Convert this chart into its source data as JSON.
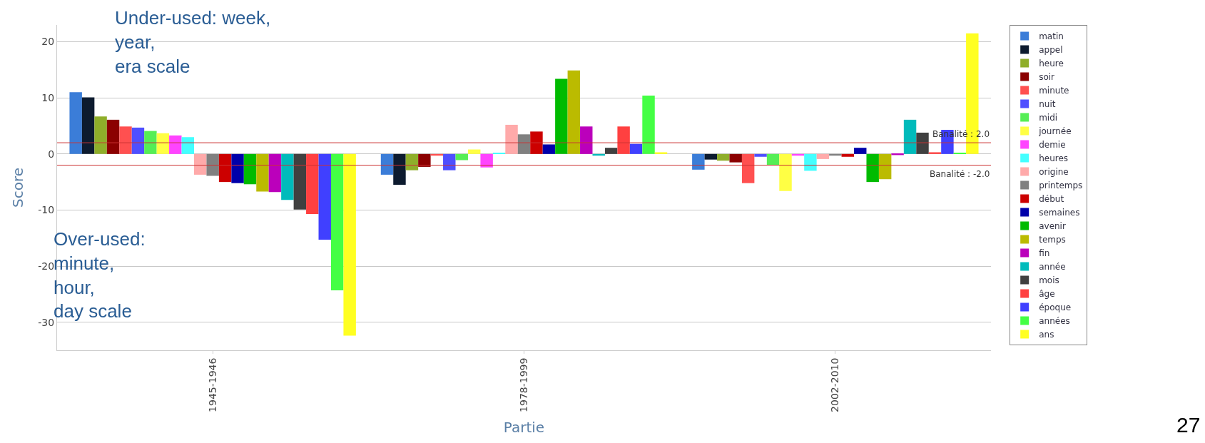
{
  "chart_data": {
    "type": "bar",
    "xlabel": "Partie",
    "ylabel": "Score",
    "categories": [
      "1945-1946",
      "1978-1999",
      "2002-2010"
    ],
    "series": [
      {
        "name": "matin",
        "color": "#3b7dd8",
        "values": [
          11.0,
          -3.7,
          -2.8
        ]
      },
      {
        "name": "appel",
        "color": "#0d1b2f",
        "values": [
          10.1,
          -5.5,
          -1.0
        ]
      },
      {
        "name": "heure",
        "color": "#8fae2a",
        "values": [
          6.7,
          -2.9,
          -1.2
        ]
      },
      {
        "name": "soir",
        "color": "#8b0000",
        "values": [
          6.1,
          -2.3,
          -1.5
        ]
      },
      {
        "name": "minute",
        "color": "#ff5050",
        "values": [
          4.9,
          -0.3,
          -5.2
        ]
      },
      {
        "name": "nuit",
        "color": "#4f4fff",
        "values": [
          4.7,
          -2.9,
          -0.5
        ]
      },
      {
        "name": "midi",
        "color": "#55ee55",
        "values": [
          4.1,
          -1.1,
          -2.0
        ]
      },
      {
        "name": "journée",
        "color": "#ffff44",
        "values": [
          3.7,
          0.8,
          -6.6
        ]
      },
      {
        "name": "demie",
        "color": "#ff44ff",
        "values": [
          3.3,
          -2.4,
          -0.3
        ]
      },
      {
        "name": "heures",
        "color": "#44ffff",
        "values": [
          3.0,
          0.2,
          -3.0
        ]
      },
      {
        "name": "origine",
        "color": "#ffaaaa",
        "values": [
          -3.7,
          5.2,
          -0.9
        ]
      },
      {
        "name": "printemps",
        "color": "#808080",
        "values": [
          -3.9,
          3.5,
          -0.3
        ]
      },
      {
        "name": "début",
        "color": "#cc0000",
        "values": [
          -5.0,
          4.0,
          -0.5
        ]
      },
      {
        "name": "semaines",
        "color": "#0000aa",
        "values": [
          -5.2,
          1.7,
          1.1
        ]
      },
      {
        "name": "avenir",
        "color": "#00bb00",
        "values": [
          -5.4,
          13.4,
          -5.0
        ]
      },
      {
        "name": "temps",
        "color": "#bbbb00",
        "values": [
          -6.7,
          14.9,
          -4.5
        ]
      },
      {
        "name": "fin",
        "color": "#bb00bb",
        "values": [
          -6.8,
          4.9,
          -0.2
        ]
      },
      {
        "name": "année",
        "color": "#00bbbb",
        "values": [
          -8.2,
          -0.3,
          6.1
        ]
      },
      {
        "name": "mois",
        "color": "#404040",
        "values": [
          -9.9,
          1.1,
          3.8
        ]
      },
      {
        "name": "âge",
        "color": "#ff4040",
        "values": [
          -10.7,
          4.9,
          0.3
        ]
      },
      {
        "name": "époque",
        "color": "#4040ff",
        "values": [
          -15.3,
          1.8,
          4.3
        ]
      },
      {
        "name": "années",
        "color": "#44ff44",
        "values": [
          -24.3,
          10.4,
          0.2
        ]
      },
      {
        "name": "ans",
        "color": "#ffff22",
        "values": [
          -32.4,
          0.3,
          21.5
        ]
      }
    ],
    "ylim": [
      -35,
      23
    ],
    "yticks": [
      -30,
      -20,
      -10,
      0,
      10,
      20
    ],
    "grid": "y",
    "legend": "right",
    "ref_lines": [
      {
        "axis": "y",
        "value": 2.0,
        "label": "Banalité : 2.0",
        "color": "#cc3333"
      },
      {
        "axis": "y",
        "value": -2.0,
        "label": "Banalité : -2.0",
        "color": "#cc3333"
      }
    ],
    "annotations": [
      "Under-used: week,\nyear,\nera scale",
      "Over-used:\nminute,\nhour,\nday scale",
      "27"
    ]
  }
}
